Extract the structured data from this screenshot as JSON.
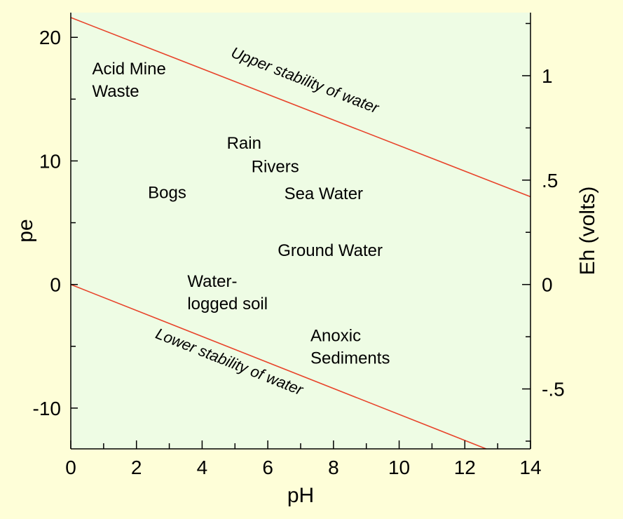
{
  "chart_data": {
    "type": "line",
    "xlabel": "pH",
    "ylabel": "pe",
    "y2label": "Eh (volts)",
    "xlim": [
      0,
      14
    ],
    "ylim": [
      -13.3,
      22
    ],
    "y2lim_volts": [
      -0.787,
      1.302
    ],
    "xticks": [
      0,
      2,
      4,
      6,
      8,
      10,
      12,
      14
    ],
    "yticks": [
      -10,
      0,
      10,
      20
    ],
    "y2ticks": [
      {
        "value": -0.5,
        "label": "-.5"
      },
      {
        "value": 0,
        "label": "0"
      },
      {
        "value": 0.5,
        "label": ".5"
      },
      {
        "value": 1,
        "label": "1"
      }
    ],
    "series": [
      {
        "name": "Upper stability of water",
        "color": "#e8432a",
        "x": [
          0,
          14
        ],
        "y": [
          21.6,
          7.1
        ]
      },
      {
        "name": "Lower stability of water",
        "color": "#e8432a",
        "x": [
          0,
          12.65
        ],
        "y": [
          0,
          -13.3
        ]
      }
    ],
    "annotations": [
      {
        "lines": [
          "Acid Mine",
          "Waste"
        ],
        "x": 0.65,
        "y": 17.0
      },
      {
        "lines": [
          "Rain"
        ],
        "x": 4.75,
        "y": 11.0
      },
      {
        "lines": [
          "Rivers"
        ],
        "x": 5.5,
        "y": 9.1
      },
      {
        "lines": [
          "Bogs"
        ],
        "x": 2.35,
        "y": 7.0
      },
      {
        "lines": [
          "Sea Water"
        ],
        "x": 6.5,
        "y": 6.9
      },
      {
        "lines": [
          "Ground Water"
        ],
        "x": 6.3,
        "y": 2.3
      },
      {
        "lines": [
          "Water-",
          "logged soil"
        ],
        "x": 3.55,
        "y": -0.2
      },
      {
        "lines": [
          "Anoxic",
          "Sediments"
        ],
        "x": 7.3,
        "y": -4.6
      }
    ],
    "line_labels": [
      {
        "text": "Upper stability of water",
        "series": 0,
        "x": 4.85,
        "y": 18.45
      },
      {
        "text": "Lower stability of water",
        "series": 1,
        "x": 2.55,
        "y": -4.3
      }
    ]
  },
  "colors": {
    "background": "#fefed8",
    "plot_fill": "#eefce4",
    "line": "#e8432a",
    "axis": "#000000"
  }
}
